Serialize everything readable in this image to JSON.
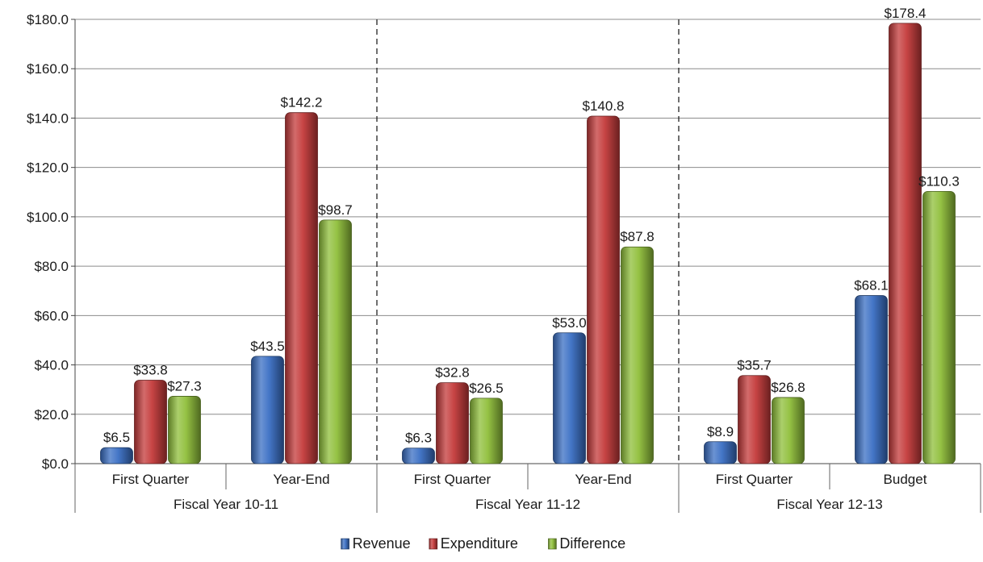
{
  "chart_data": {
    "type": "bar",
    "title": "",
    "xlabel": "",
    "ylabel": "",
    "ylim": [
      0,
      180
    ],
    "y_ticks": [
      "$0.0",
      "$20.0",
      "$40.0",
      "$60.0",
      "$80.0",
      "$100.0",
      "$120.0",
      "$140.0",
      "$160.0",
      "$180.0"
    ],
    "y_tick_values": [
      0,
      20,
      40,
      60,
      80,
      100,
      120,
      140,
      160,
      180
    ],
    "grid": true,
    "legend_position": "bottom",
    "groups": [
      "Fiscal Year 10-11",
      "Fiscal Year 11-12",
      "Fiscal Year 12-13"
    ],
    "categories": [
      "First Quarter",
      "Year-End",
      "First Quarter",
      "Year-End",
      "First Quarter",
      "Budget"
    ],
    "category_group": [
      0,
      0,
      1,
      1,
      2,
      2
    ],
    "series": [
      {
        "name": "Revenue",
        "color": "#3a6fc4",
        "values": [
          6.5,
          43.5,
          6.3,
          53.0,
          8.9,
          68.1
        ],
        "labels": [
          "$6.5",
          "$43.5",
          "$6.3",
          "$53.0",
          "$8.9",
          "$68.1"
        ]
      },
      {
        "name": "Expenditure",
        "color": "#c43a3a",
        "values": [
          33.8,
          142.2,
          32.8,
          140.8,
          35.7,
          178.4
        ],
        "labels": [
          "$33.8",
          "$142.2",
          "$32.8",
          "$140.8",
          "$35.7",
          "$178.4"
        ]
      },
      {
        "name": "Difference",
        "color": "#8fbf3a",
        "values": [
          27.3,
          98.7,
          26.5,
          87.8,
          26.8,
          110.3
        ],
        "labels": [
          "$27.3",
          "$98.7",
          "$26.5",
          "$87.8",
          "$26.8",
          "$110.3"
        ]
      }
    ]
  }
}
